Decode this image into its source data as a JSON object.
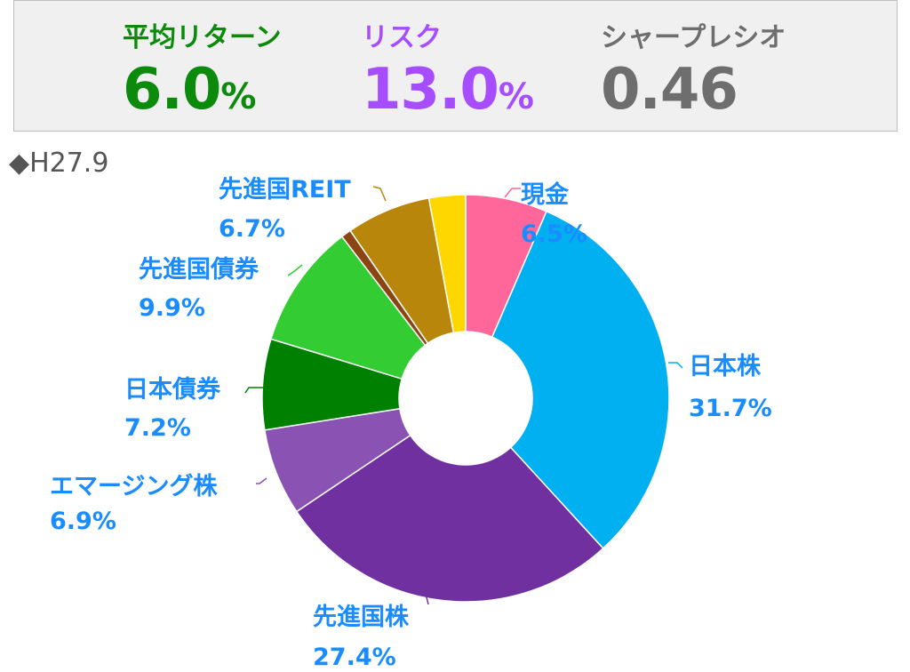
{
  "stats": {
    "return_label": "平均リターン",
    "return_value": "6.0",
    "return_unit": "%",
    "risk_label": "リスク",
    "risk_value": "13.0",
    "risk_unit": "%",
    "sharpe_label": "シャープレシオ",
    "sharpe_value": "0.46",
    "colors": {
      "return": "#0c8a0c",
      "risk": "#a64dff",
      "sharpe": "#6e6e6e"
    }
  },
  "period_label": "◆H27.9",
  "chart_data": {
    "type": "pie",
    "style": "donut",
    "slices": [
      {
        "name": "現金",
        "value": 6.5,
        "label": "6.5%",
        "color": "#ff6699"
      },
      {
        "name": "日本株",
        "value": 31.7,
        "label": "31.7%",
        "color": "#00b0f0"
      },
      {
        "name": "先進国株",
        "value": 27.4,
        "label": "27.4%",
        "color": "#7030a0"
      },
      {
        "name": "エマージング株",
        "value": 6.9,
        "label": "6.9%",
        "color": "#8a52b3"
      },
      {
        "name": "日本債券",
        "value": 7.2,
        "label": "7.2%",
        "color": "#008000"
      },
      {
        "name": "先進国債券",
        "value": 9.9,
        "label": "9.9%",
        "color": "#33cc33"
      },
      {
        "name": "",
        "value": 0.8,
        "label": "",
        "color": "#8b4513"
      },
      {
        "name": "先進国REIT",
        "value": 6.7,
        "label": "6.7%",
        "color": "#b8860b"
      },
      {
        "name": "",
        "value": 2.9,
        "label": "",
        "color": "#ffd700"
      }
    ],
    "label_color": "#1a8cff"
  }
}
